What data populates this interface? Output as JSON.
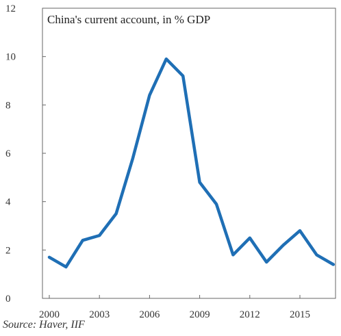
{
  "chart_data": {
    "type": "line",
    "title": "China's current account, in % GDP",
    "source": "Source: Haver, IIF",
    "x_ticks": [
      "2000",
      "2003",
      "2006",
      "2009",
      "2012",
      "2015"
    ],
    "y_ticks": [
      "0",
      "2",
      "4",
      "6",
      "8",
      "10",
      "12"
    ],
    "ylim": [
      0,
      12
    ],
    "xlim": [
      2000,
      2017
    ],
    "grid": false,
    "series": [
      {
        "x": [
          2000,
          2001,
          2002,
          2003,
          2004,
          2005,
          2006,
          2007,
          2008,
          2009,
          2010,
          2011,
          2012,
          2013,
          2014,
          2015,
          2016,
          2017
        ],
        "values": [
          1.7,
          1.3,
          2.4,
          2.6,
          3.5,
          5.8,
          8.4,
          9.9,
          9.2,
          4.8,
          3.9,
          1.8,
          2.5,
          1.5,
          2.2,
          2.8,
          1.8,
          1.4
        ],
        "color": "#1F6FB5"
      }
    ]
  }
}
